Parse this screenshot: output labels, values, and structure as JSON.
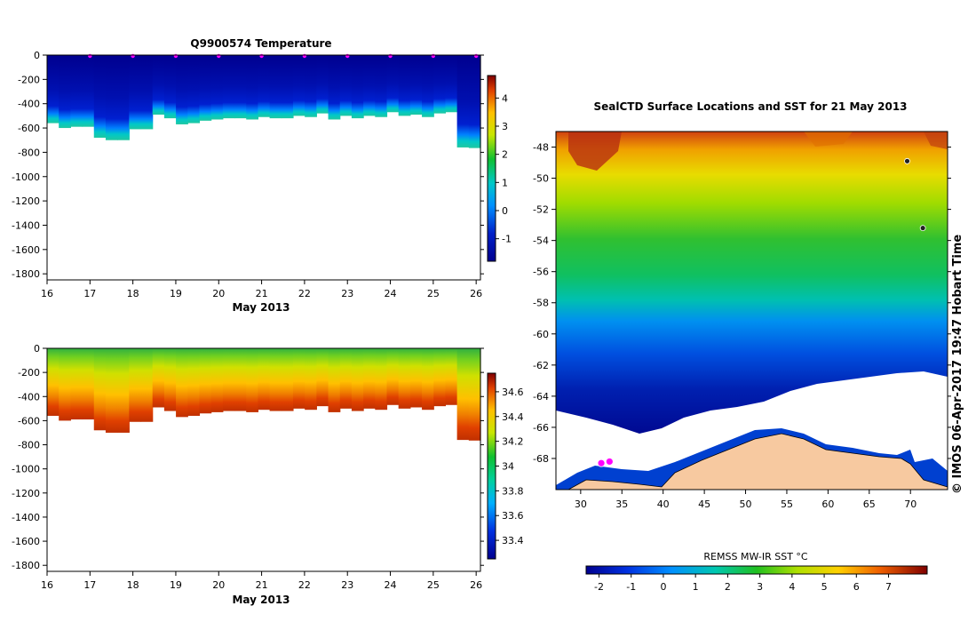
{
  "chart_data": [
    {
      "type": "heatmap",
      "id": "temperature-section",
      "title": "Q9900574  Temperature",
      "xlabel": "May 2013",
      "x_ticks": [
        16,
        17,
        18,
        19,
        20,
        21,
        22,
        23,
        24,
        25,
        26
      ],
      "y_ticks": [
        0,
        -200,
        -400,
        -600,
        -800,
        -1000,
        -1200,
        -1400,
        -1600,
        -1800
      ],
      "xlim": [
        16,
        26.1
      ],
      "ylim": [
        -1850,
        0
      ],
      "profile_markers_day": [
        17,
        18,
        19,
        20,
        21,
        22,
        23,
        24,
        25,
        26
      ],
      "colorbar": {
        "min": -1.8,
        "max": 4.8,
        "ticks": [
          4,
          3,
          2,
          1,
          0,
          -1
        ],
        "labels": [
          "4",
          "3",
          "2",
          "1",
          "0",
          "-1"
        ]
      },
      "profile_max_depth_m": [
        560,
        600,
        590,
        590,
        680,
        700,
        700,
        610,
        610,
        490,
        520,
        570,
        560,
        540,
        530,
        520,
        520,
        530,
        510,
        520,
        520,
        500,
        510,
        480,
        530,
        500,
        520,
        500,
        510,
        470,
        500,
        490,
        510,
        480,
        470,
        760,
        765
      ]
    },
    {
      "type": "heatmap",
      "id": "salinity-section",
      "title": "",
      "xlabel": "May 2013",
      "x_ticks": [
        16,
        17,
        18,
        19,
        20,
        21,
        22,
        23,
        24,
        25,
        26
      ],
      "y_ticks": [
        0,
        -200,
        -400,
        -600,
        -800,
        -1000,
        -1200,
        -1400,
        -1600,
        -1800
      ],
      "xlim": [
        16,
        26.1
      ],
      "ylim": [
        -1850,
        0
      ],
      "colorbar": {
        "min": 33.25,
        "max": 34.75,
        "ticks": [
          34.6,
          34.4,
          34.2,
          34,
          33.8,
          33.6,
          33.4
        ],
        "labels": [
          "34.6",
          "34.4",
          "34.2",
          "34",
          "33.8",
          "33.6",
          "33.4"
        ]
      }
    },
    {
      "type": "heatmap",
      "id": "sst-map",
      "title": "SealCTD Surface Locations and SST for 21 May 2013",
      "x_ticks": [
        30,
        35,
        40,
        45,
        50,
        55,
        60,
        65,
        70
      ],
      "y_ticks": [
        -48,
        -50,
        -52,
        -54,
        -56,
        -58,
        -60,
        -62,
        -64,
        -66,
        -68
      ],
      "xlim": [
        27,
        74.5
      ],
      "ylim": [
        -70,
        -47
      ],
      "colorbar": {
        "label": "REMSS MW-IR SST °C",
        "min": -2.4,
        "max": 8.2,
        "ticks": [
          -2,
          -1,
          0,
          1,
          2,
          3,
          4,
          5,
          6,
          7
        ],
        "labels": [
          "-2",
          "-1",
          "0",
          "1",
          "2",
          "3",
          "4",
          "5",
          "6",
          "7"
        ]
      },
      "seal_locations": [
        {
          "lon": 32.5,
          "lat": -68.3
        },
        {
          "lon": 33.5,
          "lat": -68.2
        },
        {
          "lon": 69.6,
          "lat": -48.9
        },
        {
          "lon": 71.5,
          "lat": -53.2
        }
      ]
    }
  ],
  "credit": "© IMOS 06-Apr-2017 19:47 Hobart Time",
  "colors": {
    "pink_marker": "#ff00ff",
    "land": "#f7c9a0",
    "ice": "#ffffff"
  }
}
